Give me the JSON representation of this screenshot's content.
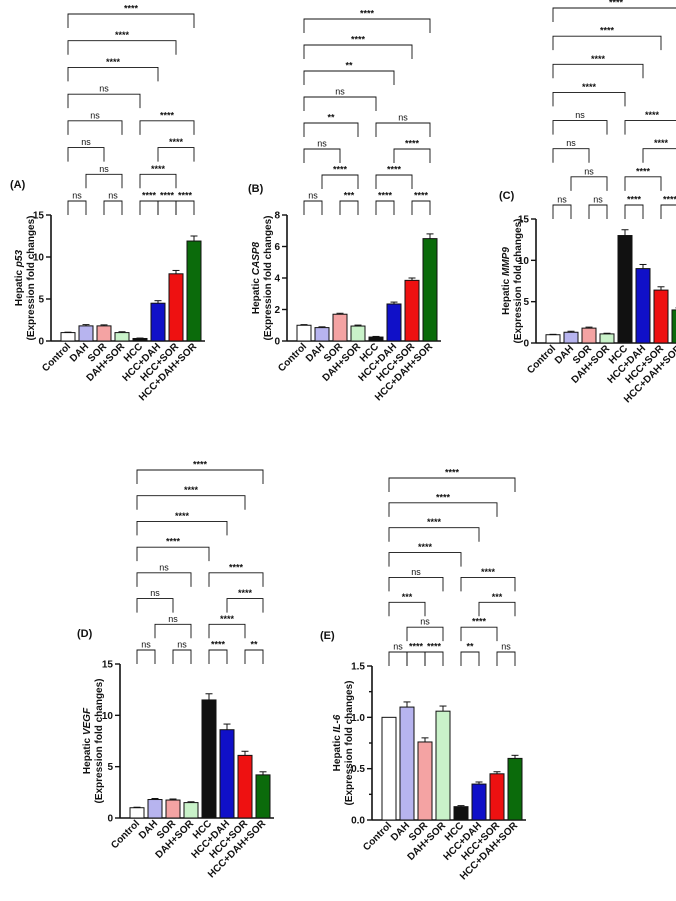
{
  "chart_data": [
    {
      "id": "A",
      "type": "bar",
      "panel_label": "(A)",
      "ylabel_prefix": "Hepatic ",
      "ylabel_gene": "p53",
      "ylabel_line2": "(Expression fold changes)",
      "categories": [
        "Control",
        "DAH",
        "SOR",
        "DAH+SOR",
        "HCC",
        "HCC+DAH",
        "HCC+SOR",
        "HCC+DAH+SOR"
      ],
      "values": [
        1.0,
        1.8,
        1.8,
        1.0,
        0.3,
        4.5,
        8.0,
        11.9
      ],
      "errors": [
        0.05,
        0.15,
        0.12,
        0.1,
        0.05,
        0.3,
        0.4,
        0.6
      ],
      "ylim": [
        0,
        15
      ],
      "yticks": [
        0,
        5,
        10,
        15
      ],
      "colors": [
        "#ffffff",
        "#b7b4ef",
        "#f4a3a3",
        "#c9f2c9",
        "#111111",
        "#1010c8",
        "#ee1111",
        "#0b6b0b"
      ],
      "comparisons": [
        {
          "from": 0,
          "to": 1,
          "label": "ns"
        },
        {
          "from": 1,
          "to": 3,
          "label": "ns"
        },
        {
          "from": 4,
          "to": 5,
          "label": "****"
        },
        {
          "from": 5,
          "to": 6,
          "label": "****"
        },
        {
          "from": 6,
          "to": 7,
          "label": "****"
        },
        {
          "from": 0,
          "to": 2,
          "label": "ns"
        },
        {
          "from": 2,
          "to": 3,
          "label": "ns"
        },
        {
          "from": 4,
          "to": 6,
          "label": "****"
        },
        {
          "from": 5,
          "to": 7,
          "label": "****"
        },
        {
          "from": 0,
          "to": 3,
          "label": "ns"
        },
        {
          "from": 4,
          "to": 7,
          "label": "****"
        },
        {
          "from": 0,
          "to": 4,
          "label": "ns"
        },
        {
          "from": 0,
          "to": 5,
          "label": "****"
        },
        {
          "from": 0,
          "to": 6,
          "label": "****"
        },
        {
          "from": 0,
          "to": 7,
          "label": "****"
        }
      ]
    },
    {
      "id": "B",
      "type": "bar",
      "panel_label": "(B)",
      "ylabel_prefix": "Hepatic ",
      "ylabel_gene": "CASP8",
      "ylabel_line2": "(Expression fold changes)",
      "categories": [
        "Control",
        "DAH",
        "SOR",
        "DAH+SOR",
        "HCC",
        "HCC+DAH",
        "HCC+SOR",
        "HCC+DAH+SOR"
      ],
      "values": [
        1.0,
        0.85,
        1.7,
        0.95,
        0.25,
        2.35,
        3.85,
        6.5
      ],
      "errors": [
        0.04,
        0.05,
        0.06,
        0.06,
        0.04,
        0.12,
        0.15,
        0.3
      ],
      "ylim": [
        0,
        8
      ],
      "yticks": [
        0,
        2,
        4,
        6,
        8
      ],
      "colors": [
        "#ffffff",
        "#b7b4ef",
        "#f4a3a3",
        "#c9f2c9",
        "#111111",
        "#1010c8",
        "#ee1111",
        "#0b6b0b"
      ],
      "comparisons": [
        {
          "from": 0,
          "to": 1,
          "label": "ns"
        },
        {
          "from": 1,
          "to": 3,
          "label": "****"
        },
        {
          "from": 4,
          "to": 5,
          "label": "****"
        },
        {
          "from": 6,
          "to": 7,
          "label": "****"
        },
        {
          "from": 0,
          "to": 2,
          "label": "ns"
        },
        {
          "from": 2,
          "to": 3,
          "label": "***"
        },
        {
          "from": 4,
          "to": 6,
          "label": "****"
        },
        {
          "from": 5,
          "to": 7,
          "label": "****"
        },
        {
          "from": 0,
          "to": 3,
          "label": "**"
        },
        {
          "from": 4,
          "to": 7,
          "label": "ns"
        },
        {
          "from": 0,
          "to": 4,
          "label": "ns"
        },
        {
          "from": 0,
          "to": 5,
          "label": "**"
        },
        {
          "from": 0,
          "to": 6,
          "label": "****"
        },
        {
          "from": 0,
          "to": 7,
          "label": "****"
        }
      ]
    },
    {
      "id": "C",
      "type": "bar",
      "panel_label": "(C)",
      "ylabel_prefix": "Hepatic ",
      "ylabel_gene": "MMP9",
      "ylabel_line2": "(Expression fold changes)",
      "categories": [
        "Control",
        "DAH",
        "SOR",
        "DAH+SOR",
        "HCC",
        "HCC+DAH",
        "HCC+SOR",
        "HCC+DAH+SOR"
      ],
      "values": [
        1.0,
        1.3,
        1.8,
        1.1,
        13.0,
        9.0,
        6.4,
        4.0
      ],
      "errors": [
        0.05,
        0.12,
        0.12,
        0.08,
        0.7,
        0.5,
        0.4,
        0.25
      ],
      "ylim": [
        0,
        15
      ],
      "yticks": [
        0,
        5,
        10,
        15
      ],
      "colors": [
        "#ffffff",
        "#b7b4ef",
        "#f4a3a3",
        "#c9f2c9",
        "#111111",
        "#1010c8",
        "#ee1111",
        "#0b6b0b"
      ],
      "comparisons": [
        {
          "from": 0,
          "to": 1,
          "label": "ns"
        },
        {
          "from": 1,
          "to": 3,
          "label": "ns"
        },
        {
          "from": 4,
          "to": 5,
          "label": "****"
        },
        {
          "from": 6,
          "to": 7,
          "label": "****"
        },
        {
          "from": 0,
          "to": 2,
          "label": "ns"
        },
        {
          "from": 2,
          "to": 3,
          "label": "ns"
        },
        {
          "from": 4,
          "to": 6,
          "label": "****"
        },
        {
          "from": 5,
          "to": 7,
          "label": "****"
        },
        {
          "from": 0,
          "to": 3,
          "label": "ns"
        },
        {
          "from": 4,
          "to": 7,
          "label": "****"
        },
        {
          "from": 0,
          "to": 4,
          "label": "****"
        },
        {
          "from": 0,
          "to": 5,
          "label": "****"
        },
        {
          "from": 0,
          "to": 6,
          "label": "****"
        },
        {
          "from": 0,
          "to": 7,
          "label": "****"
        }
      ]
    },
    {
      "id": "D",
      "type": "bar",
      "panel_label": "(D)",
      "ylabel_prefix": "Hepatic ",
      "ylabel_gene": "VEGF",
      "ylabel_line2": "(Expression fold changes)",
      "categories": [
        "Control",
        "DAH",
        "SOR",
        "DAH+SOR",
        "HCC",
        "HCC+DAH",
        "HCC+SOR",
        "HCC+DAH+SOR"
      ],
      "values": [
        1.0,
        1.8,
        1.75,
        1.5,
        11.5,
        8.6,
        6.1,
        4.2
      ],
      "errors": [
        0.05,
        0.1,
        0.1,
        0.08,
        0.6,
        0.55,
        0.4,
        0.3
      ],
      "ylim": [
        0,
        15
      ],
      "yticks": [
        0,
        5,
        10,
        15
      ],
      "colors": [
        "#ffffff",
        "#b7b4ef",
        "#f4a3a3",
        "#c9f2c9",
        "#111111",
        "#1010c8",
        "#ee1111",
        "#0b6b0b"
      ],
      "comparisons": [
        {
          "from": 0,
          "to": 1,
          "label": "ns"
        },
        {
          "from": 1,
          "to": 3,
          "label": "ns"
        },
        {
          "from": 4,
          "to": 5,
          "label": "****"
        },
        {
          "from": 6,
          "to": 7,
          "label": "**"
        },
        {
          "from": 0,
          "to": 2,
          "label": "ns"
        },
        {
          "from": 2,
          "to": 3,
          "label": "ns"
        },
        {
          "from": 4,
          "to": 6,
          "label": "****"
        },
        {
          "from": 5,
          "to": 7,
          "label": "****"
        },
        {
          "from": 0,
          "to": 3,
          "label": "ns"
        },
        {
          "from": 4,
          "to": 7,
          "label": "****"
        },
        {
          "from": 0,
          "to": 4,
          "label": "****"
        },
        {
          "from": 0,
          "to": 5,
          "label": "****"
        },
        {
          "from": 0,
          "to": 6,
          "label": "****"
        },
        {
          "from": 0,
          "to": 7,
          "label": "****"
        }
      ]
    },
    {
      "id": "E",
      "type": "bar",
      "panel_label": "(E)",
      "ylabel_prefix": "Hepatic ",
      "ylabel_gene": "IL-6",
      "ylabel_line2": "(Expression fold changes)",
      "categories": [
        "Control",
        "DAH",
        "SOR",
        "DAH+SOR",
        "HCC",
        "HCC+DAH",
        "HCC+SOR",
        "HCC+DAH+SOR"
      ],
      "values": [
        1.0,
        1.1,
        0.76,
        1.06,
        0.13,
        0.35,
        0.45,
        0.6
      ],
      "errors": [
        0.0,
        0.05,
        0.04,
        0.05,
        0.01,
        0.02,
        0.02,
        0.03
      ],
      "ylim": [
        0,
        1.5
      ],
      "yticks": [
        0.0,
        0.25,
        0.5,
        0.75,
        1.0,
        1.25,
        1.5
      ],
      "ytick_labels": [
        "0.0",
        "",
        "0.5",
        "",
        "1.0",
        "",
        "1.5"
      ],
      "colors": [
        "#ffffff",
        "#b7b4ef",
        "#f4a3a3",
        "#c9f2c9",
        "#111111",
        "#1010c8",
        "#ee1111",
        "#0b6b0b"
      ],
      "comparisons": [
        {
          "from": 0,
          "to": 1,
          "label": "ns"
        },
        {
          "from": 1,
          "to": 2,
          "label": "****"
        },
        {
          "from": 2,
          "to": 3,
          "label": "****"
        },
        {
          "from": 4,
          "to": 5,
          "label": "**"
        },
        {
          "from": 6,
          "to": 7,
          "label": "ns"
        },
        {
          "from": 1,
          "to": 3,
          "label": "ns"
        },
        {
          "from": 4,
          "to": 6,
          "label": "****"
        },
        {
          "from": 5,
          "to": 7,
          "label": "***"
        },
        {
          "from": 0,
          "to": 2,
          "label": "***"
        },
        {
          "from": 4,
          "to": 7,
          "label": "****"
        },
        {
          "from": 0,
          "to": 3,
          "label": "ns"
        },
        {
          "from": 0,
          "to": 4,
          "label": "****"
        },
        {
          "from": 0,
          "to": 5,
          "label": "****"
        },
        {
          "from": 0,
          "to": 6,
          "label": "****"
        },
        {
          "from": 0,
          "to": 7,
          "label": "****"
        }
      ]
    }
  ]
}
